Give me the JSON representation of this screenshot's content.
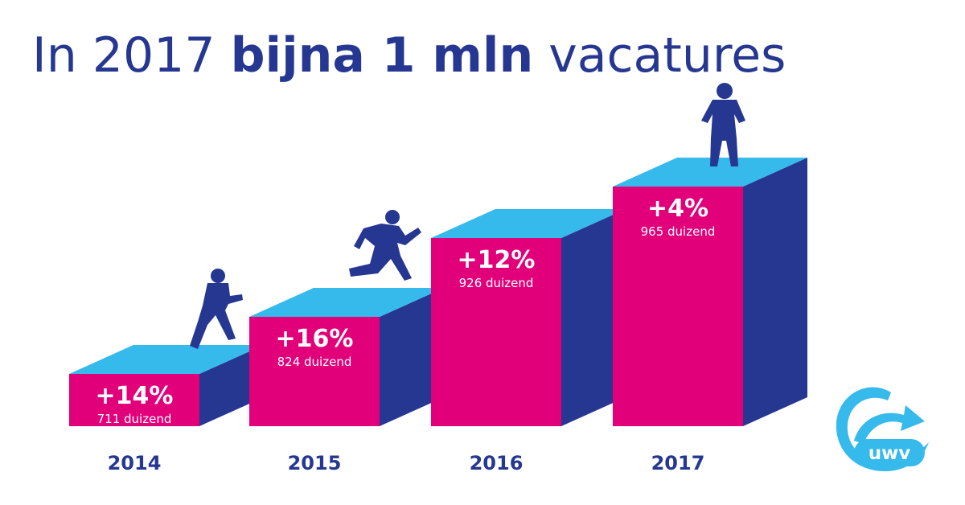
{
  "title": {
    "part1": "In 2017 ",
    "part2": "bijna 1 mln",
    "part3": " vacatures"
  },
  "chart_data": {
    "type": "bar",
    "title": "In 2017 bijna 1 mln vacatures",
    "categories": [
      "2014",
      "2015",
      "2016",
      "2017"
    ],
    "values": [
      711,
      824,
      926,
      965
    ],
    "unit": "duizend",
    "value_labels": [
      "711 duizend",
      "824 duizend",
      "926 duizend",
      "965 duizend"
    ],
    "growth_labels": [
      "+14%",
      "+16%",
      "+12%",
      "+4%"
    ],
    "xlabel": "",
    "ylabel": "",
    "grid": false
  },
  "colors": {
    "title": "#263791",
    "bar_front": "#E2007A",
    "bar_top": "#36B9EB",
    "bar_side": "#263791",
    "figure": "#263791",
    "logo": "#36B9EB"
  },
  "logo": {
    "text": "uwv"
  }
}
